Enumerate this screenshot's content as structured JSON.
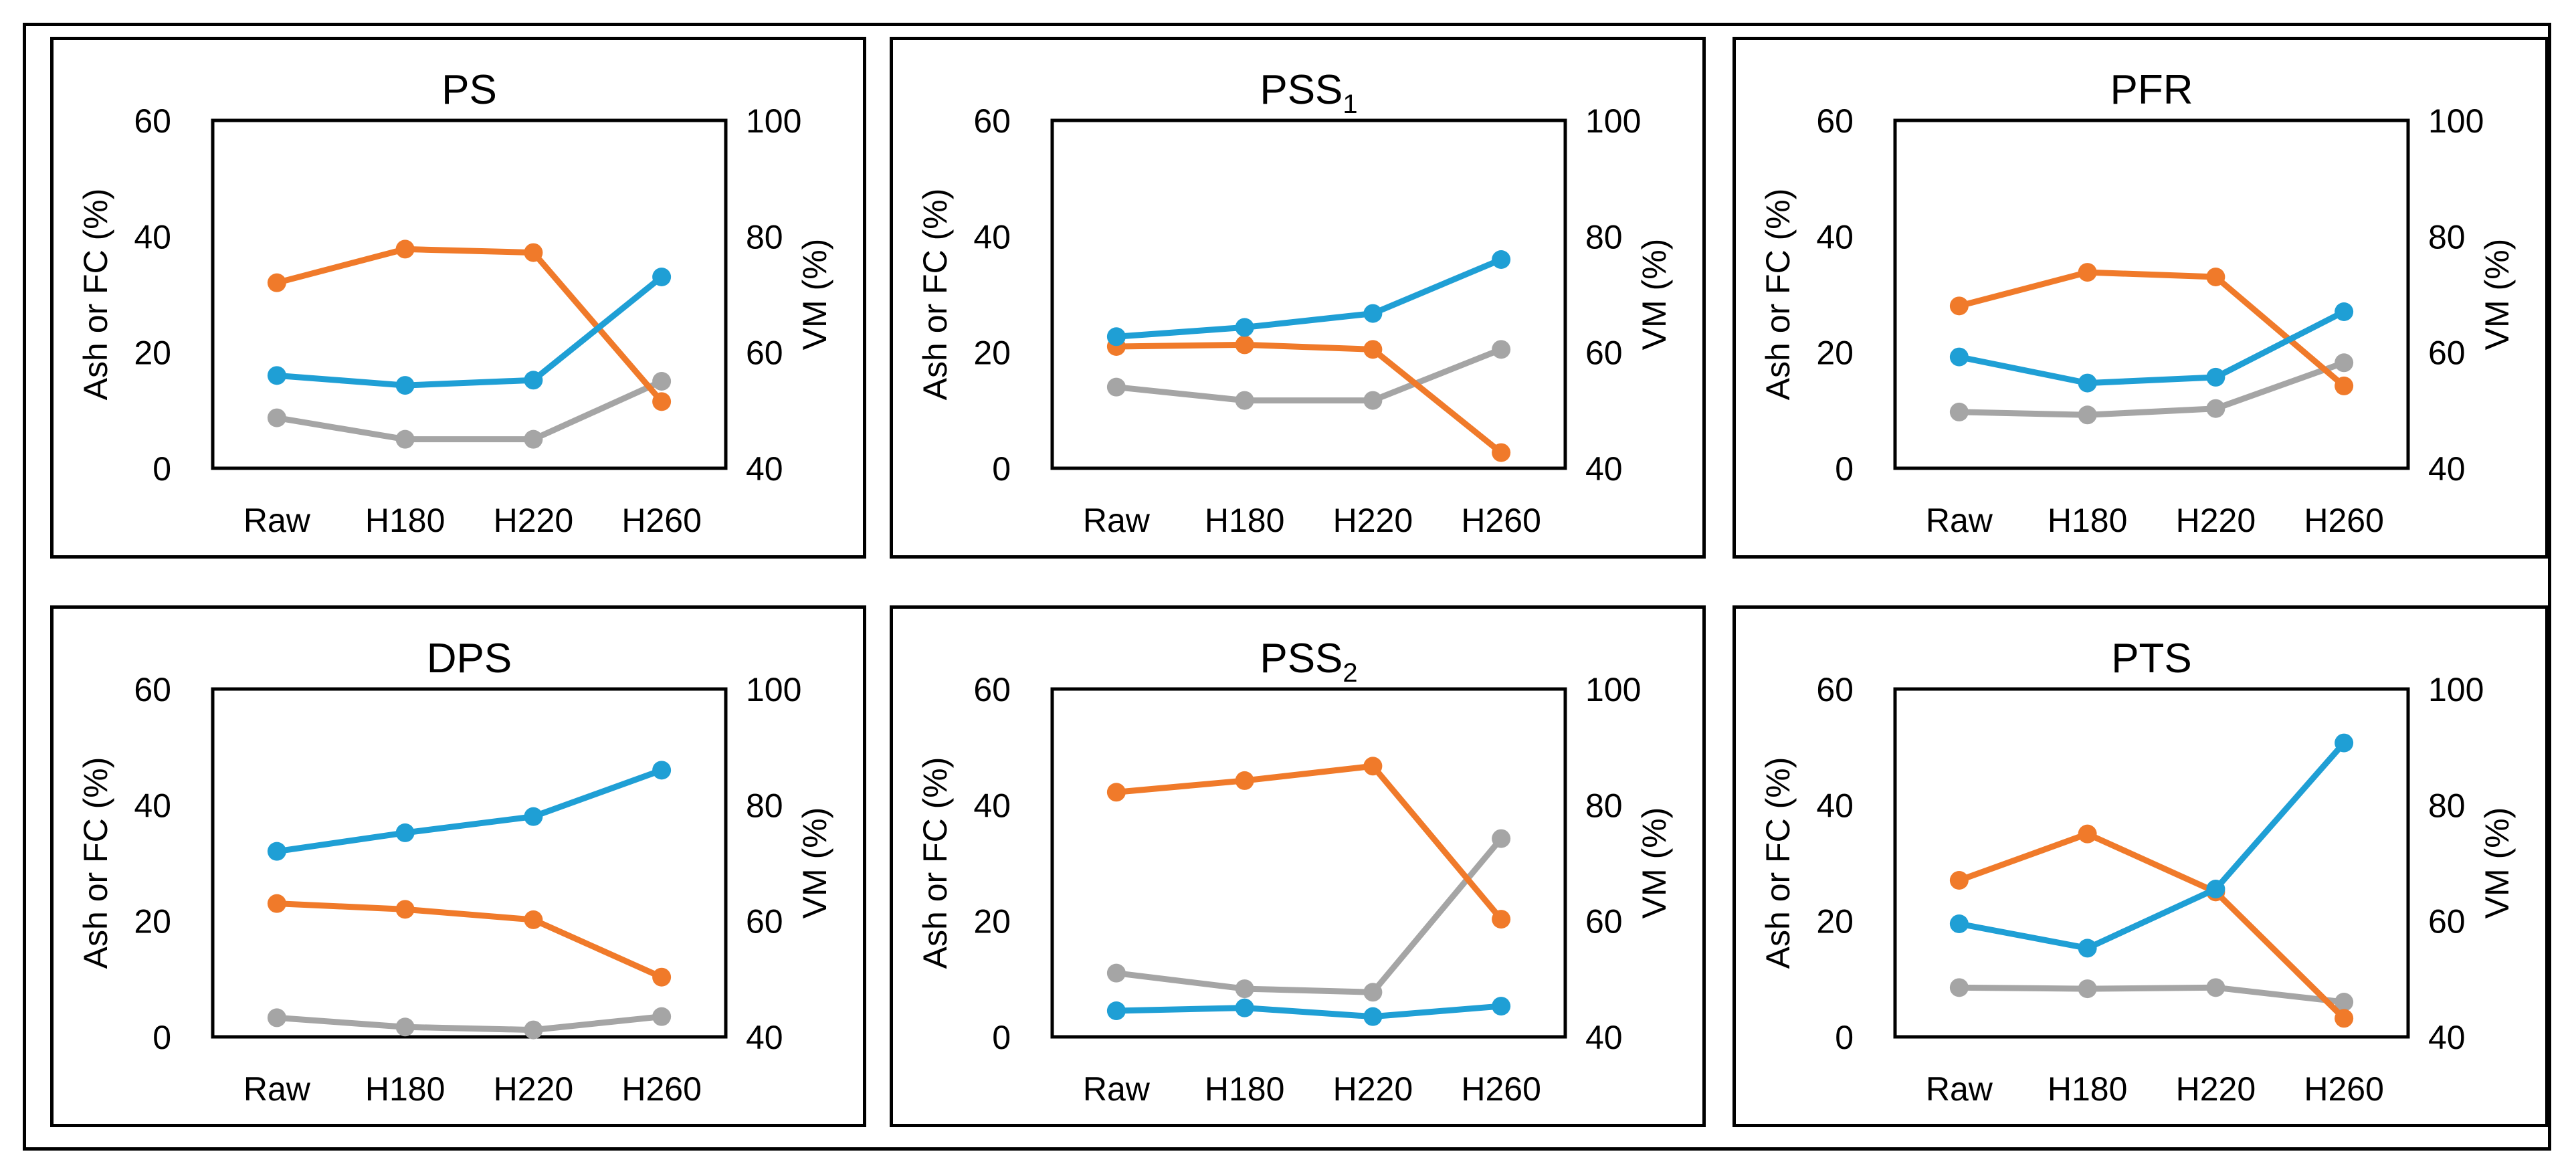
{
  "colors": {
    "Ash": "#1f9fd5",
    "FC": "#f07a2a",
    "VM": "#a5a5a5"
  },
  "chart_data": [
    {
      "type": "line",
      "title": "PS",
      "title_base": "PS",
      "title_sub": "",
      "categories": [
        "Raw",
        "H180",
        "H220",
        "H260"
      ],
      "ylabel": "Ash or FC (%)",
      "y2label": "VM (%)",
      "ylim": [
        0,
        60
      ],
      "yticks": [
        0,
        20,
        40,
        60
      ],
      "y2lim": [
        40,
        100
      ],
      "y2ticks": [
        40,
        60,
        80,
        100
      ],
      "grid": false,
      "legend": "none",
      "series": [
        {
          "key": "Ash",
          "axis": "left",
          "values": [
            16,
            14.3,
            15.2,
            33
          ]
        },
        {
          "key": "FC",
          "axis": "left",
          "values": [
            32,
            37.8,
            37.2,
            11.5
          ]
        },
        {
          "key": "VM",
          "axis": "right",
          "values": [
            48.7,
            45,
            45,
            55
          ]
        }
      ]
    },
    {
      "type": "line",
      "title": "PSS1",
      "title_base": "PSS",
      "title_sub": "1",
      "categories": [
        "Raw",
        "H180",
        "H220",
        "H260"
      ],
      "ylabel": "Ash or FC (%)",
      "y2label": "VM (%)",
      "ylim": [
        0,
        60
      ],
      "yticks": [
        0,
        20,
        40,
        60
      ],
      "y2lim": [
        40,
        100
      ],
      "y2ticks": [
        40,
        60,
        80,
        100
      ],
      "grid": false,
      "legend": "none",
      "series": [
        {
          "key": "Ash",
          "axis": "left",
          "values": [
            22.7,
            24.3,
            26.7,
            36
          ]
        },
        {
          "key": "FC",
          "axis": "left",
          "values": [
            21,
            21.3,
            20.5,
            2.7
          ]
        },
        {
          "key": "VM",
          "axis": "right",
          "values": [
            54,
            51.7,
            51.7,
            60.5
          ]
        }
      ]
    },
    {
      "type": "line",
      "title": "PFR",
      "title_base": "PFR",
      "title_sub": "",
      "categories": [
        "Raw",
        "H180",
        "H220",
        "H260"
      ],
      "ylabel": "Ash or FC (%)",
      "y2label": "VM (%)",
      "ylim": [
        0,
        60
      ],
      "yticks": [
        0,
        20,
        40,
        60
      ],
      "y2lim": [
        40,
        100
      ],
      "y2ticks": [
        40,
        60,
        80,
        100
      ],
      "grid": false,
      "legend": "none",
      "series": [
        {
          "key": "Ash",
          "axis": "left",
          "values": [
            19.2,
            14.7,
            15.7,
            27
          ]
        },
        {
          "key": "FC",
          "axis": "left",
          "values": [
            28,
            33.8,
            33,
            14.2
          ]
        },
        {
          "key": "VM",
          "axis": "right",
          "values": [
            49.7,
            49.2,
            50.3,
            58.2
          ]
        }
      ]
    },
    {
      "type": "line",
      "title": "DPS",
      "title_base": "DPS",
      "title_sub": "",
      "categories": [
        "Raw",
        "H180",
        "H220",
        "H260"
      ],
      "ylabel": "Ash or FC (%)",
      "y2label": "VM (%)",
      "ylim": [
        0,
        60
      ],
      "yticks": [
        0,
        20,
        40,
        60
      ],
      "y2lim": [
        40,
        100
      ],
      "y2ticks": [
        40,
        60,
        80,
        100
      ],
      "grid": false,
      "legend": "none",
      "series": [
        {
          "key": "Ash",
          "axis": "left",
          "values": [
            32,
            35.2,
            38,
            46
          ]
        },
        {
          "key": "FC",
          "axis": "left",
          "values": [
            23,
            22,
            20.2,
            10.3
          ]
        },
        {
          "key": "VM",
          "axis": "right",
          "values": [
            43.3,
            41.7,
            41.2,
            43.5
          ]
        }
      ]
    },
    {
      "type": "line",
      "title": "PSS2",
      "title_base": "PSS",
      "title_sub": "2",
      "categories": [
        "Raw",
        "H180",
        "H220",
        "H260"
      ],
      "ylabel": "Ash or FC (%)",
      "y2label": "VM (%)",
      "ylim": [
        0,
        60
      ],
      "yticks": [
        0,
        20,
        40,
        60
      ],
      "y2lim": [
        40,
        100
      ],
      "y2ticks": [
        40,
        60,
        80,
        100
      ],
      "grid": false,
      "legend": "none",
      "series": [
        {
          "key": "Ash",
          "axis": "left",
          "values": [
            4.5,
            5,
            3.5,
            5.3
          ]
        },
        {
          "key": "FC",
          "axis": "left",
          "values": [
            42.2,
            44.2,
            46.7,
            20.3
          ]
        },
        {
          "key": "VM",
          "axis": "right",
          "values": [
            51,
            48.3,
            47.7,
            74.2
          ]
        }
      ]
    },
    {
      "type": "line",
      "title": "PTS",
      "title_base": "PTS",
      "title_sub": "",
      "categories": [
        "Raw",
        "H180",
        "H220",
        "H260"
      ],
      "ylabel": "Ash or FC (%)",
      "y2label": "VM (%)",
      "ylim": [
        0,
        60
      ],
      "yticks": [
        0,
        20,
        40,
        60
      ],
      "y2lim": [
        40,
        100
      ],
      "y2ticks": [
        40,
        60,
        80,
        100
      ],
      "grid": false,
      "legend": "none",
      "series": [
        {
          "key": "Ash",
          "axis": "left",
          "values": [
            19.5,
            15.3,
            25.5,
            50.7
          ]
        },
        {
          "key": "FC",
          "axis": "left",
          "values": [
            27,
            35,
            25,
            3.2
          ]
        },
        {
          "key": "VM",
          "axis": "right",
          "values": [
            48.5,
            48.3,
            48.5,
            46
          ]
        }
      ]
    }
  ]
}
